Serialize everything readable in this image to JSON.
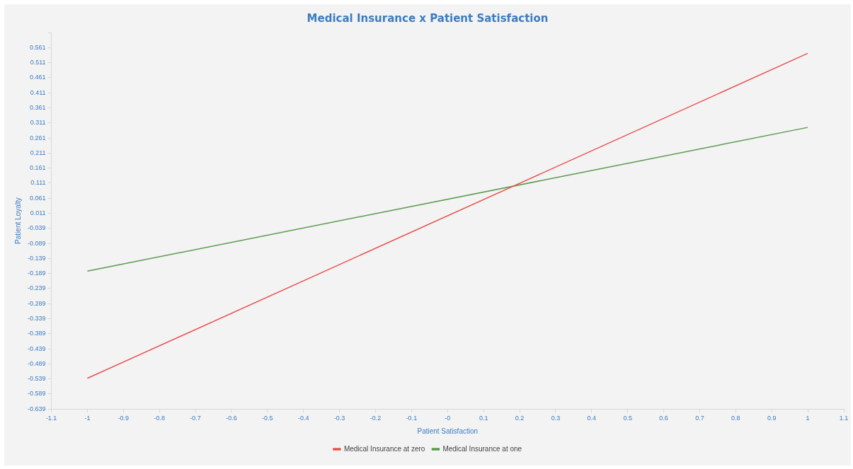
{
  "chart_data": {
    "type": "line",
    "title": "Medical Insurance x Patient Satisfaction",
    "xlabel": "Patient Satisfaction",
    "ylabel": "Patient Loyalty",
    "series": [
      {
        "name": "Medical Insurance at zero",
        "color": "#e8524f",
        "values": [
          -0.537,
          0.542
        ]
      },
      {
        "name": "Medical Insurance at one",
        "color": "#5a9a4e",
        "values": [
          -0.181,
          0.296
        ]
      }
    ],
    "x": [
      -1,
      1
    ],
    "xlim": [
      -1.1,
      1.1
    ],
    "xticks": [
      -1.1,
      -1,
      -0.9,
      -0.8,
      -0.7,
      -0.6,
      -0.5,
      -0.4,
      -0.3,
      -0.2,
      -0.1,
      {
        "value": 0,
        "label": "-0"
      },
      0.1,
      0.2,
      0.3,
      0.4,
      0.5,
      0.6,
      0.7,
      0.8,
      0.9,
      1,
      1.1
    ],
    "ylim": [
      -0.639,
      0.611
    ],
    "yticks": [
      -0.639,
      -0.589,
      -0.539,
      -0.489,
      -0.439,
      -0.389,
      -0.339,
      -0.289,
      -0.239,
      -0.189,
      -0.139,
      -0.089,
      -0.039,
      0.011,
      0.061,
      0.111,
      0.161,
      0.211,
      0.261,
      0.311,
      0.361,
      0.411,
      0.461,
      0.511,
      0.561,
      {
        "value": 0.611,
        "label": null
      }
    ],
    "grid": false,
    "legend": "bottom",
    "marker": "none",
    "line_style": "solid"
  }
}
